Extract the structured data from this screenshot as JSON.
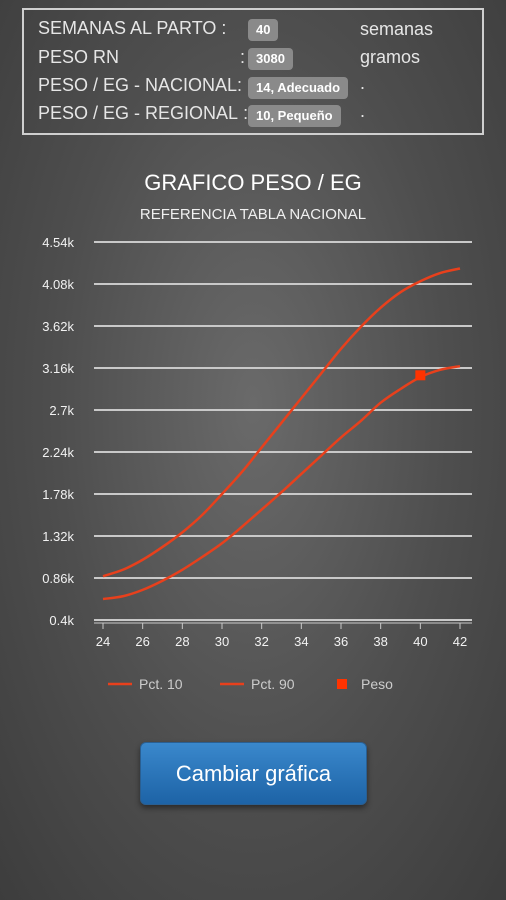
{
  "info": {
    "rows": [
      {
        "label": "SEMANAS AL PARTO",
        "value": "40",
        "unit": "semanas"
      },
      {
        "label": "PESO RN",
        "value": "3080",
        "unit": "gramos"
      },
      {
        "label": "PESO / EG - NACIONAL",
        "value": "14, Adecuado",
        "unit": "."
      },
      {
        "label": "PESO / EG - REGIONAL",
        "value": "10, Pequeño",
        "unit": "."
      }
    ]
  },
  "chart_data": {
    "type": "line",
    "title": "GRAFICO PESO / EG",
    "subtitle": "REFERENCIA TABLA NACIONAL",
    "xlabel": "",
    "ylabel": "",
    "x_ticks": [
      "24",
      "26",
      "28",
      "30",
      "32",
      "34",
      "36",
      "38",
      "40",
      "42"
    ],
    "y_ticks": [
      "0.4k",
      "0.86k",
      "1.32k",
      "1.78k",
      "2.24k",
      "2.7k",
      "3.16k",
      "3.62k",
      "4.08k",
      "4.54k"
    ],
    "xlim": [
      24,
      42
    ],
    "ylim": [
      400,
      4540
    ],
    "grid": true,
    "legend": "bottom",
    "series": [
      {
        "name": "Pct. 10",
        "color": "#e8401c",
        "x": [
          24,
          25,
          26,
          27,
          28,
          29,
          30,
          31,
          32,
          33,
          34,
          35,
          36,
          37,
          38,
          39,
          40,
          41,
          42
        ],
        "values": [
          630,
          660,
          730,
          830,
          950,
          1090,
          1240,
          1420,
          1610,
          1800,
          2000,
          2200,
          2400,
          2580,
          2780,
          2930,
          3060,
          3140,
          3180
        ]
      },
      {
        "name": "Pct. 90",
        "color": "#e8401c",
        "x": [
          24,
          25,
          26,
          27,
          28,
          29,
          30,
          31,
          32,
          33,
          34,
          35,
          36,
          37,
          38,
          39,
          40,
          41,
          42
        ],
        "values": [
          880,
          950,
          1060,
          1200,
          1360,
          1550,
          1780,
          2020,
          2290,
          2560,
          2830,
          3100,
          3370,
          3610,
          3820,
          3990,
          4110,
          4200,
          4250
        ]
      }
    ],
    "points": [
      {
        "name": "Peso",
        "color": "#ff3300",
        "x": 40,
        "y": 3080
      }
    ]
  },
  "button": {
    "label": "Cambiar gráfica"
  }
}
